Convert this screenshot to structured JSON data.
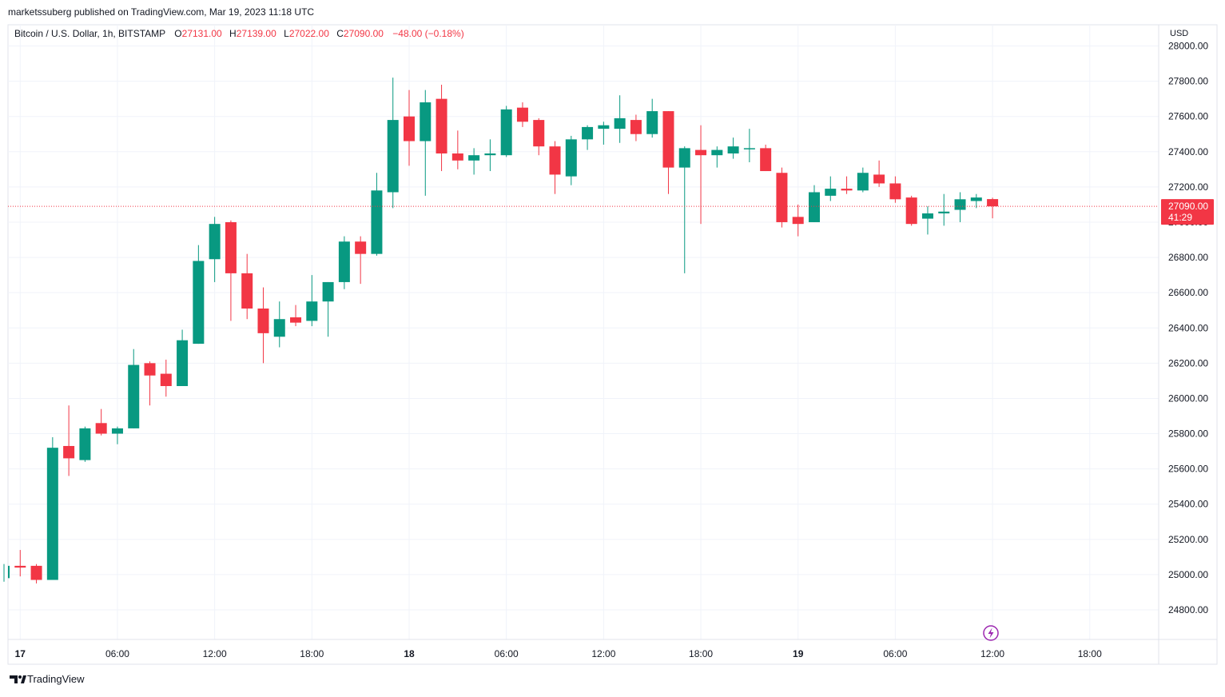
{
  "header": {
    "published": "marketssuberg published on TradingView.com, Mar 19, 2023 11:18 UTC"
  },
  "legend": {
    "symbol": "Bitcoin / U.S. Dollar, 1h, BITSTAMP",
    "o_label": "O",
    "o_value": "27131.00",
    "h_label": "H",
    "h_value": "27139.00",
    "l_label": "L",
    "l_value": "27022.00",
    "c_label": "C",
    "c_value": "27090.00",
    "change": "−48.00 (−0.18%)"
  },
  "price_axis": {
    "currency": "USD"
  },
  "last_price": {
    "value": "27090.00",
    "countdown": "41:29"
  },
  "footer": {
    "brand": "TradingView"
  },
  "colors": {
    "up": "#089981",
    "down": "#f23645",
    "grid": "#f0f3fa",
    "text": "#131722",
    "last_price_line": "#f23645",
    "lightning": "#9c27b0"
  },
  "chart_data": {
    "type": "candlestick",
    "interval": "1h",
    "title": "Bitcoin / U.S. Dollar, 1h, BITSTAMP",
    "ylim": [
      24700,
      28100
    ],
    "y_ticks": [
      24800,
      25000,
      25200,
      25400,
      25600,
      25800,
      26000,
      26200,
      26400,
      26600,
      26800,
      27000,
      27200,
      27400,
      27600,
      27800,
      28000
    ],
    "y_tick_labels": [
      "24800.00",
      "25000.00",
      "25200.00",
      "25400.00",
      "25600.00",
      "25800.00",
      "26000.00",
      "26200.00",
      "26400.00",
      "26600.00",
      "26800.00",
      "27000.00",
      "27200.00",
      "27400.00",
      "27600.00",
      "27800.00",
      "28000.00"
    ],
    "x_tick_labels": [
      {
        "bar": 1,
        "label": "17"
      },
      {
        "bar": 7,
        "label": "06:00"
      },
      {
        "bar": 13,
        "label": "12:00"
      },
      {
        "bar": 19,
        "label": "18:00"
      },
      {
        "bar": 25,
        "label": "18"
      },
      {
        "bar": 31,
        "label": "06:00"
      },
      {
        "bar": 37,
        "label": "12:00"
      },
      {
        "bar": 43,
        "label": "18:00"
      },
      {
        "bar": 49,
        "label": "19"
      },
      {
        "bar": 55,
        "label": "06:00"
      },
      {
        "bar": 61,
        "label": "12:00"
      },
      {
        "bar": 67,
        "label": "18:00"
      }
    ],
    "grid": true,
    "candles": [
      {
        "o": 24980,
        "h": 25060,
        "l": 24960,
        "c": 25050
      },
      {
        "o": 25050,
        "h": 25140,
        "l": 24990,
        "c": 25040
      },
      {
        "o": 25050,
        "h": 25060,
        "l": 24950,
        "c": 24970
      },
      {
        "o": 24970,
        "h": 25780,
        "l": 24970,
        "c": 25720
      },
      {
        "o": 25730,
        "h": 25960,
        "l": 25560,
        "c": 25660
      },
      {
        "o": 25650,
        "h": 25840,
        "l": 25640,
        "c": 25830
      },
      {
        "o": 25860,
        "h": 25940,
        "l": 25790,
        "c": 25800
      },
      {
        "o": 25800,
        "h": 25840,
        "l": 25740,
        "c": 25830
      },
      {
        "o": 25830,
        "h": 26280,
        "l": 25830,
        "c": 26190
      },
      {
        "o": 26200,
        "h": 26210,
        "l": 25960,
        "c": 26130
      },
      {
        "o": 26140,
        "h": 26220,
        "l": 26010,
        "c": 26070
      },
      {
        "o": 26070,
        "h": 26390,
        "l": 26070,
        "c": 26330
      },
      {
        "o": 26310,
        "h": 26870,
        "l": 26310,
        "c": 26780
      },
      {
        "o": 26790,
        "h": 27030,
        "l": 26660,
        "c": 26990
      },
      {
        "o": 27000,
        "h": 27010,
        "l": 26440,
        "c": 26710
      },
      {
        "o": 26710,
        "h": 26820,
        "l": 26450,
        "c": 26510
      },
      {
        "o": 26510,
        "h": 26630,
        "l": 26200,
        "c": 26370
      },
      {
        "o": 26350,
        "h": 26550,
        "l": 26290,
        "c": 26450
      },
      {
        "o": 26460,
        "h": 26530,
        "l": 26410,
        "c": 26430
      },
      {
        "o": 26440,
        "h": 26700,
        "l": 26410,
        "c": 26550
      },
      {
        "o": 26550,
        "h": 26660,
        "l": 26350,
        "c": 26660
      },
      {
        "o": 26660,
        "h": 26920,
        "l": 26620,
        "c": 26890
      },
      {
        "o": 26890,
        "h": 26920,
        "l": 26650,
        "c": 26820
      },
      {
        "o": 26820,
        "h": 27280,
        "l": 26810,
        "c": 27180
      },
      {
        "o": 27170,
        "h": 27820,
        "l": 27080,
        "c": 27580
      },
      {
        "o": 27600,
        "h": 27750,
        "l": 27320,
        "c": 27460
      },
      {
        "o": 27460,
        "h": 27750,
        "l": 27150,
        "c": 27680
      },
      {
        "o": 27700,
        "h": 27780,
        "l": 27290,
        "c": 27390
      },
      {
        "o": 27390,
        "h": 27520,
        "l": 27300,
        "c": 27350
      },
      {
        "o": 27350,
        "h": 27420,
        "l": 27270,
        "c": 27380
      },
      {
        "o": 27380,
        "h": 27470,
        "l": 27290,
        "c": 27390
      },
      {
        "o": 27380,
        "h": 27660,
        "l": 27370,
        "c": 27640
      },
      {
        "o": 27650,
        "h": 27680,
        "l": 27540,
        "c": 27570
      },
      {
        "o": 27580,
        "h": 27590,
        "l": 27380,
        "c": 27430
      },
      {
        "o": 27430,
        "h": 27460,
        "l": 27160,
        "c": 27270
      },
      {
        "o": 27260,
        "h": 27490,
        "l": 27210,
        "c": 27470
      },
      {
        "o": 27470,
        "h": 27550,
        "l": 27410,
        "c": 27540
      },
      {
        "o": 27530,
        "h": 27570,
        "l": 27440,
        "c": 27550
      },
      {
        "o": 27530,
        "h": 27720,
        "l": 27450,
        "c": 27590
      },
      {
        "o": 27580,
        "h": 27610,
        "l": 27460,
        "c": 27500
      },
      {
        "o": 27500,
        "h": 27700,
        "l": 27480,
        "c": 27630
      },
      {
        "o": 27630,
        "h": 27630,
        "l": 27160,
        "c": 27310
      },
      {
        "o": 27310,
        "h": 27430,
        "l": 26710,
        "c": 27420
      },
      {
        "o": 27410,
        "h": 27550,
        "l": 26990,
        "c": 27380
      },
      {
        "o": 27380,
        "h": 27430,
        "l": 27310,
        "c": 27410
      },
      {
        "o": 27390,
        "h": 27480,
        "l": 27360,
        "c": 27430
      },
      {
        "o": 27420,
        "h": 27530,
        "l": 27340,
        "c": 27420
      },
      {
        "o": 27420,
        "h": 27440,
        "l": 27290,
        "c": 27290
      },
      {
        "o": 27280,
        "h": 27310,
        "l": 26970,
        "c": 27000
      },
      {
        "o": 27030,
        "h": 27100,
        "l": 26920,
        "c": 26990
      },
      {
        "o": 27000,
        "h": 27210,
        "l": 27000,
        "c": 27170
      },
      {
        "o": 27150,
        "h": 27260,
        "l": 27120,
        "c": 27190
      },
      {
        "o": 27190,
        "h": 27260,
        "l": 27160,
        "c": 27180
      },
      {
        "o": 27180,
        "h": 27310,
        "l": 27170,
        "c": 27280
      },
      {
        "o": 27270,
        "h": 27350,
        "l": 27200,
        "c": 27220
      },
      {
        "o": 27220,
        "h": 27260,
        "l": 27110,
        "c": 27130
      },
      {
        "o": 27140,
        "h": 27150,
        "l": 26980,
        "c": 26990
      },
      {
        "o": 27020,
        "h": 27090,
        "l": 26930,
        "c": 27050
      },
      {
        "o": 27050,
        "h": 27160,
        "l": 26980,
        "c": 27060
      },
      {
        "o": 27070,
        "h": 27170,
        "l": 27000,
        "c": 27130
      },
      {
        "o": 27120,
        "h": 27160,
        "l": 27080,
        "c": 27140
      },
      {
        "o": 27131,
        "h": 27139,
        "l": 27022,
        "c": 27090
      }
    ]
  }
}
